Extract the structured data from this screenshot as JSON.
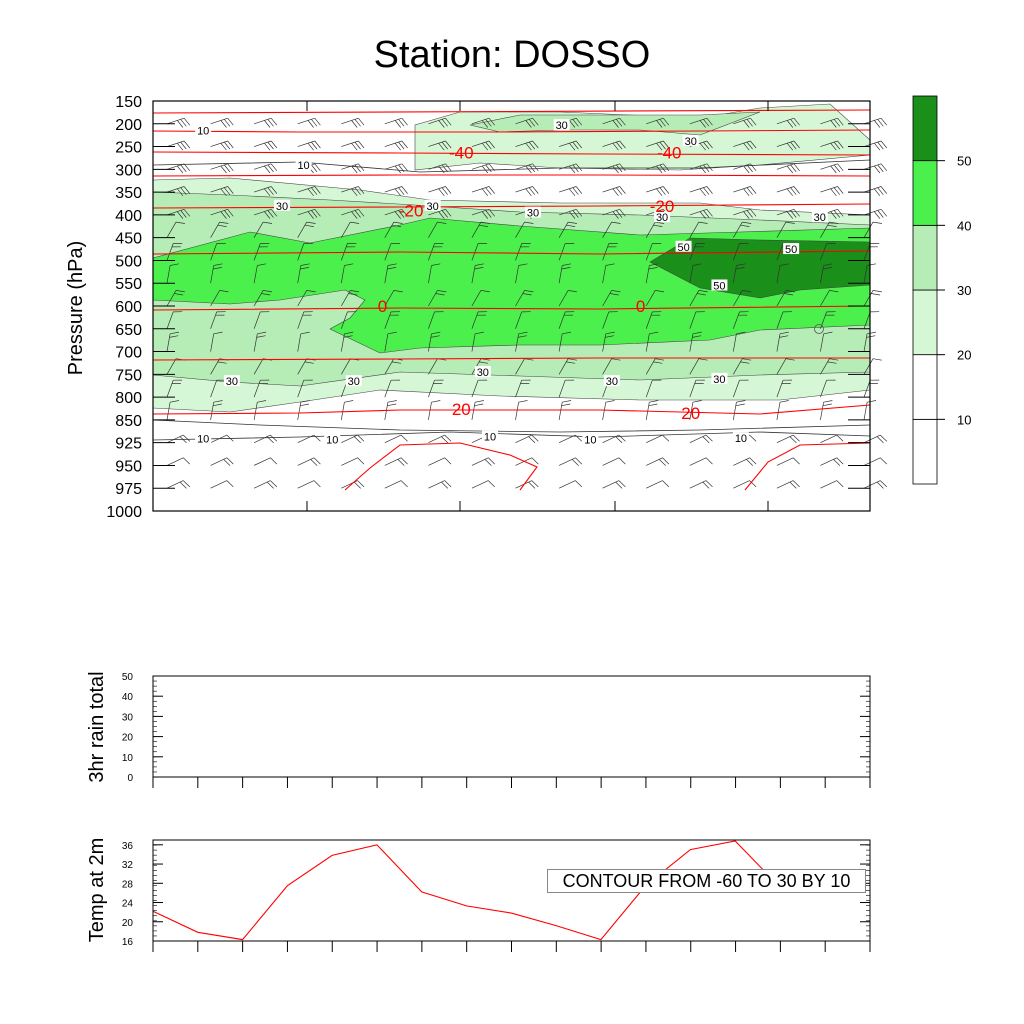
{
  "chart_data": [
    {
      "type": "heatmap",
      "title": "Station: DOSSO",
      "xlabel": "",
      "ylabel": "Pressure (hPa)",
      "y_levels": [
        "150",
        "200",
        "250",
        "300",
        "350",
        "400",
        "450",
        "500",
        "550",
        "600",
        "650",
        "700",
        "750",
        "800",
        "850",
        "925",
        "950",
        "975",
        "1000"
      ],
      "ylim": [
        1000,
        150
      ],
      "fill_field": "relative humidity (green shading)",
      "colorbar": {
        "labels": [
          "10",
          "20",
          "30",
          "40",
          "50"
        ],
        "colors": [
          "#ffffff",
          "#ffffff",
          "#d6f7d6",
          "#b6edb6",
          "#4cf04c",
          "#1a8f1a"
        ]
      },
      "fill_level_labels": [
        {
          "text": "10",
          "x": 0.07,
          "p": 215
        },
        {
          "text": "10",
          "x": 0.21,
          "p": 290
        },
        {
          "text": "30",
          "x": 0.18,
          "p": 380
        },
        {
          "text": "30",
          "x": 0.39,
          "p": 380
        },
        {
          "text": "30",
          "x": 0.57,
          "p": 203
        },
        {
          "text": "30",
          "x": 0.75,
          "p": 238
        },
        {
          "text": "30",
          "x": 0.53,
          "p": 395
        },
        {
          "text": "30",
          "x": 0.71,
          "p": 405
        },
        {
          "text": "30",
          "x": 0.93,
          "p": 405
        },
        {
          "text": "50",
          "x": 0.74,
          "p": 470
        },
        {
          "text": "50",
          "x": 0.89,
          "p": 475
        },
        {
          "text": "50",
          "x": 0.79,
          "p": 555
        },
        {
          "text": "30",
          "x": 0.11,
          "p": 765
        },
        {
          "text": "30",
          "x": 0.28,
          "p": 765
        },
        {
          "text": "30",
          "x": 0.46,
          "p": 745
        },
        {
          "text": "30",
          "x": 0.64,
          "p": 765
        },
        {
          "text": "30",
          "x": 0.79,
          "p": 760
        },
        {
          "text": "10",
          "x": 0.07,
          "p": 912
        },
        {
          "text": "10",
          "x": 0.25,
          "p": 915
        },
        {
          "text": "10",
          "x": 0.47,
          "p": 905
        },
        {
          "text": "10",
          "x": 0.61,
          "p": 915
        },
        {
          "text": "10",
          "x": 0.82,
          "p": 910
        }
      ],
      "temperature_contour_labels": [
        {
          "text": "-40",
          "x": 0.43,
          "p": 263
        },
        {
          "text": "-40",
          "x": 0.72,
          "p": 263
        },
        {
          "text": "-20",
          "x": 0.36,
          "p": 390
        },
        {
          "text": "-20",
          "x": 0.71,
          "p": 380
        },
        {
          "text": "0",
          "x": 0.32,
          "p": 600
        },
        {
          "text": "0",
          "x": 0.68,
          "p": 600
        },
        {
          "text": "20",
          "x": 0.43,
          "p": 826
        },
        {
          "text": "20",
          "x": 0.75,
          "p": 835
        }
      ],
      "temperature_contour_color": "#ff0000",
      "contour_info": "CONTOUR FROM -60 TO 30 BY 10",
      "has_wind_barbs": true
    },
    {
      "type": "line",
      "title": "",
      "xlabel": "",
      "ylabel": "3hr rain total",
      "y_ticks": [
        "0",
        "10",
        "20",
        "30",
        "40",
        "50"
      ],
      "ylim": [
        0,
        50
      ],
      "x_ticks": 17,
      "values": []
    },
    {
      "type": "line",
      "title": "",
      "xlabel": "",
      "ylabel": "Temp at 2m",
      "y_ticks": [
        "16",
        "20",
        "24",
        "28",
        "32",
        "36"
      ],
      "ylim": [
        16,
        37
      ],
      "x": [
        0,
        1,
        2,
        3,
        4,
        5,
        6,
        7,
        8,
        9,
        10,
        11,
        12,
        13,
        14
      ],
      "values": [
        22.2,
        17.8,
        16.3,
        27.5,
        33.8,
        36.0,
        26.2,
        23.3,
        21.8,
        19.2,
        16.3,
        27.5,
        35.0,
        36.8,
        27.2
      ],
      "line_color": "#ff0000"
    }
  ]
}
